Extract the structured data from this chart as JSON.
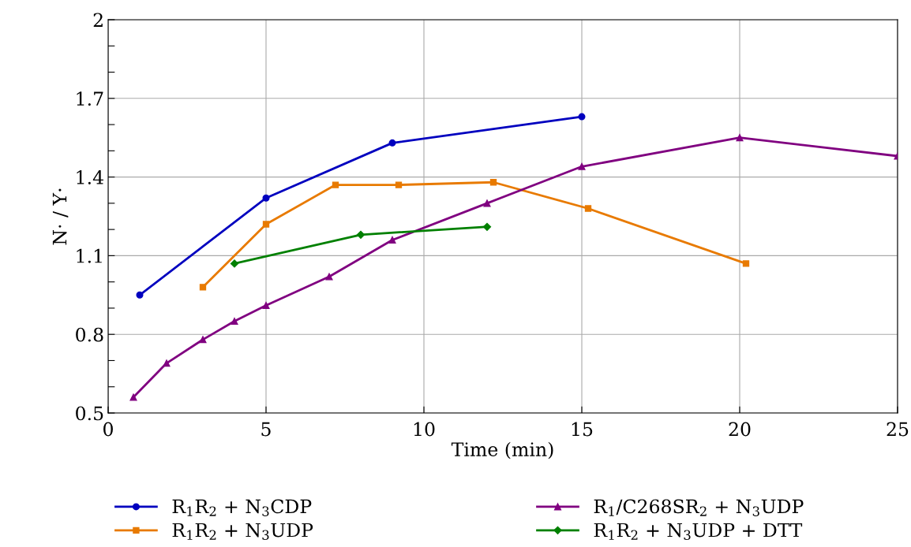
{
  "chart_data": {
    "type": "line",
    "xlabel": "Time (min)",
    "ylabel": "N· / Y·",
    "xlim": [
      0,
      25
    ],
    "xticks": [
      0,
      5,
      10,
      15,
      20,
      25
    ],
    "ylim": [
      0.5,
      2
    ],
    "yticks": [
      0.5,
      {
        "value": 0.6,
        "label": null
      },
      {
        "value": 0.7,
        "label": null
      },
      0.8,
      {
        "value": 0.9,
        "label": null
      },
      {
        "value": 1.0,
        "label": null
      },
      1.1,
      {
        "value": 1.2,
        "label": null
      },
      {
        "value": 1.3,
        "label": null
      },
      1.4,
      {
        "value": 1.5,
        "label": null
      },
      {
        "value": 1.6,
        "label": null
      },
      1.7,
      {
        "value": 1.8,
        "label": null
      },
      {
        "value": 1.9,
        "label": null
      },
      2
    ],
    "grid": true,
    "legend": "bottom",
    "line_style": "solid",
    "series": [
      {
        "name": "R$_{1}$R$_{2}$ + N$_{3}$CDP",
        "color": "#0000bf",
        "marker": "circle",
        "x": [
          1,
          5,
          9,
          15
        ],
        "values": [
          0.95,
          1.32,
          1.53,
          1.63
        ]
      },
      {
        "name": "R$_{1}$R$_{2}$ + N$_{3}$UDP",
        "color": "#e87a00",
        "marker": "square",
        "x": [
          3,
          5,
          7.2,
          9.2,
          12.2,
          15.2,
          20.2
        ],
        "values": [
          0.98,
          1.22,
          1.37,
          1.37,
          1.38,
          1.28,
          1.07
        ]
      },
      {
        "name": "R$_{1}$/C268SR$_{2}$ + N$_{3}$UDP",
        "color": "#800080",
        "marker": "triangle",
        "x": [
          0.8,
          1.85,
          3,
          4,
          5,
          7,
          9,
          12,
          15,
          20,
          25
        ],
        "values": [
          0.56,
          0.69,
          0.78,
          0.85,
          0.91,
          1.02,
          1.16,
          1.3,
          1.44,
          1.55,
          1.48
        ]
      },
      {
        "name": "R$_{1}$R$_{2}$ + N$_{3}$UDP + DTT",
        "color": "#008000",
        "marker": "diamond",
        "x": [
          4,
          8,
          12
        ],
        "values": [
          1.07,
          1.18,
          1.21
        ]
      }
    ]
  }
}
